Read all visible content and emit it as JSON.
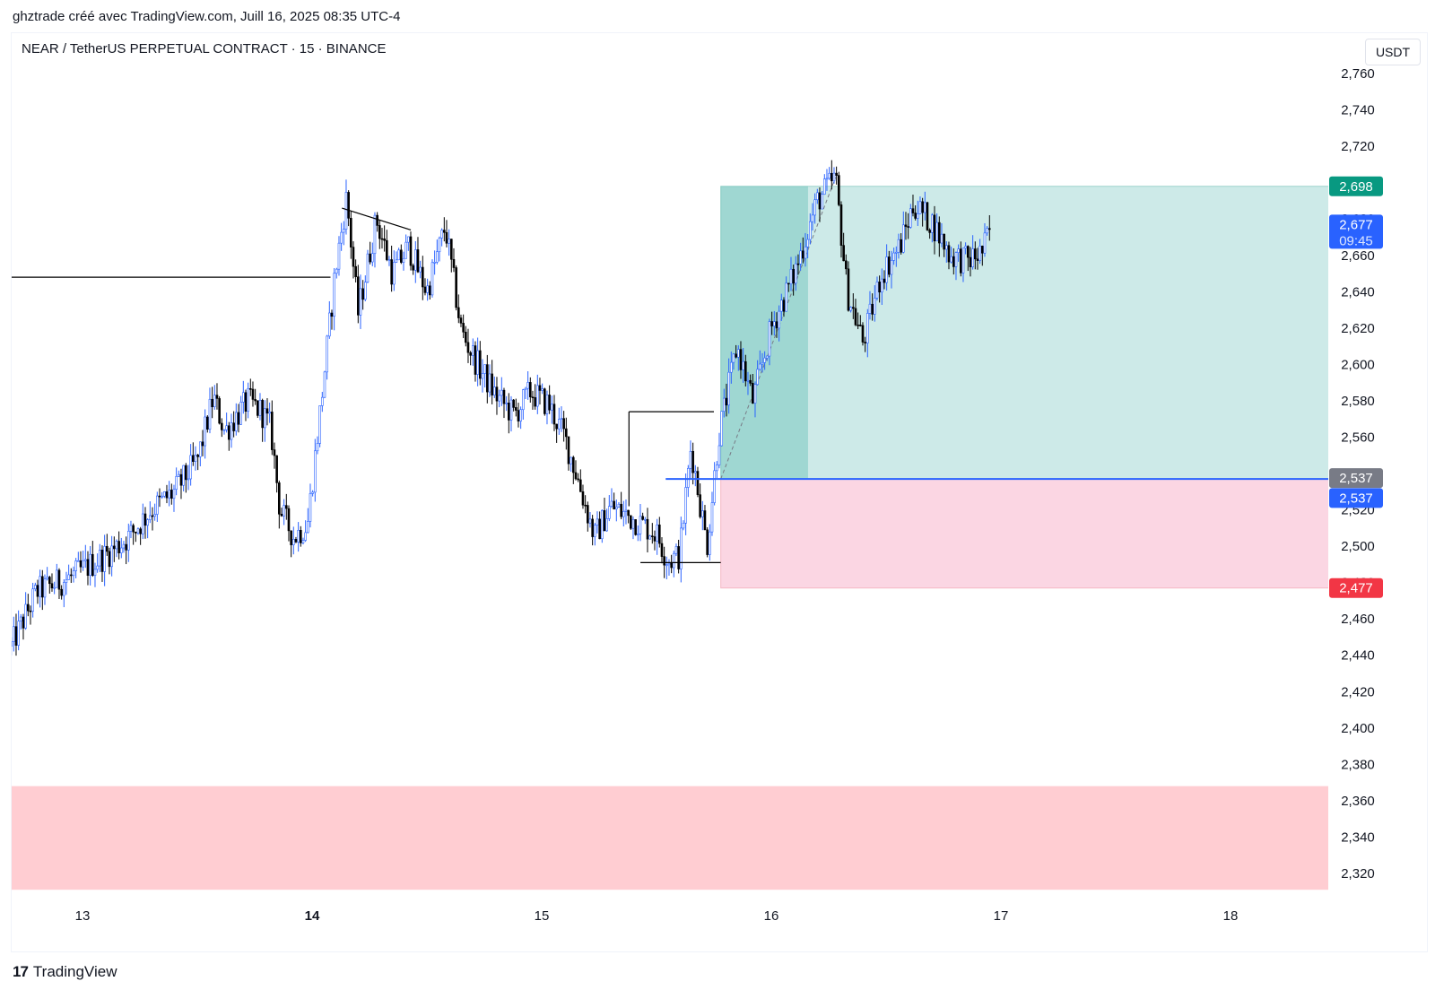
{
  "header": {
    "attribution": "ghztrade créé avec TradingView.com, Juill 16, 2025 08:35 UTC-4"
  },
  "chart_header": {
    "symbol": "NEAR / TetherUS PERPETUAL CONTRACT · 15 · BINANCE",
    "currency": "USDT"
  },
  "footer": {
    "logo_mark": "17",
    "logo_text": "TradingView"
  },
  "colors": {
    "up_wick": "#2962ff",
    "down_candle": "#000000",
    "profit_zone": "#b2dfdb",
    "profit_zone_dark": "#26a69a",
    "loss_zone": "#f8bbd0",
    "demand_zone": "#ffcdd2",
    "entry_line": "#2962ff",
    "tp_label": "#089981",
    "sl_label": "#f23645",
    "price_label": "#2962ff"
  },
  "chart_data": {
    "type": "candlestick",
    "y_ticks": [
      "2,760",
      "2,740",
      "2,720",
      "2,700",
      "2,680",
      "2,660",
      "2,640",
      "2,620",
      "2,600",
      "2,580",
      "2,560",
      "2,540",
      "2,520",
      "2,500",
      "2,480",
      "2,460",
      "2,440",
      "2,420",
      "2,400",
      "2,380",
      "2,360",
      "2,340",
      "2,320"
    ],
    "y_tick_values": [
      2.76,
      2.74,
      2.72,
      2.7,
      2.68,
      2.66,
      2.64,
      2.62,
      2.6,
      2.58,
      2.56,
      2.54,
      2.52,
      2.5,
      2.48,
      2.46,
      2.44,
      2.42,
      2.4,
      2.38,
      2.36,
      2.34,
      2.32
    ],
    "x_ticks": [
      {
        "label": "13",
        "day": 13,
        "bold": false
      },
      {
        "label": "14",
        "day": 14,
        "bold": true
      },
      {
        "label": "15",
        "day": 15,
        "bold": false
      },
      {
        "label": "16",
        "day": 16,
        "bold": false
      },
      {
        "label": "17",
        "day": 17,
        "bold": false
      },
      {
        "label": "18",
        "day": 18,
        "bold": false
      }
    ],
    "path": [
      [
        12.69,
        2.445
      ],
      [
        12.8,
        2.475
      ],
      [
        12.95,
        2.483
      ],
      [
        13.1,
        2.495
      ],
      [
        13.2,
        2.505
      ],
      [
        13.3,
        2.52
      ],
      [
        13.4,
        2.53
      ],
      [
        13.5,
        2.547
      ],
      [
        13.57,
        2.582
      ],
      [
        13.62,
        2.563
      ],
      [
        13.72,
        2.58
      ],
      [
        13.78,
        2.574
      ],
      [
        13.82,
        2.565
      ],
      [
        13.86,
        2.52
      ],
      [
        13.92,
        2.505
      ],
      [
        13.98,
        2.512
      ],
      [
        14.04,
        2.58
      ],
      [
        14.1,
        2.65
      ],
      [
        14.15,
        2.692
      ],
      [
        14.2,
        2.628
      ],
      [
        14.28,
        2.68
      ],
      [
        14.35,
        2.65
      ],
      [
        14.42,
        2.665
      ],
      [
        14.5,
        2.64
      ],
      [
        14.58,
        2.676
      ],
      [
        14.65,
        2.618
      ],
      [
        14.72,
        2.6
      ],
      [
        14.8,
        2.583
      ],
      [
        14.88,
        2.572
      ],
      [
        14.95,
        2.585
      ],
      [
        15.03,
        2.578
      ],
      [
        15.1,
        2.56
      ],
      [
        15.15,
        2.54
      ],
      [
        15.23,
        2.505
      ],
      [
        15.3,
        2.522
      ],
      [
        15.4,
        2.515
      ],
      [
        15.5,
        2.507
      ],
      [
        15.55,
        2.492
      ],
      [
        15.6,
        2.495
      ],
      [
        15.65,
        2.555
      ],
      [
        15.72,
        2.5
      ],
      [
        15.77,
        2.56
      ],
      [
        15.85,
        2.61
      ],
      [
        15.92,
        2.58
      ],
      [
        16.0,
        2.62
      ],
      [
        16.1,
        2.65
      ],
      [
        16.2,
        2.69
      ],
      [
        16.28,
        2.703
      ],
      [
        16.33,
        2.64
      ],
      [
        16.4,
        2.612
      ],
      [
        16.48,
        2.65
      ],
      [
        16.56,
        2.665
      ],
      [
        16.62,
        2.688
      ],
      [
        16.7,
        2.678
      ],
      [
        16.78,
        2.66
      ],
      [
        16.86,
        2.657
      ],
      [
        16.92,
        2.662
      ],
      [
        16.96,
        2.677
      ]
    ],
    "horizontal_levels": [
      {
        "from_day": 12.69,
        "to_day": 14.08,
        "price": 2.648
      },
      {
        "from_day": 15.38,
        "to_day": 15.75,
        "price": 2.574
      },
      {
        "from_day": 15.43,
        "to_day": 15.78,
        "price": 2.491
      }
    ],
    "trendline": {
      "x1": 14.13,
      "y1": 2.686,
      "x2": 14.43,
      "y2": 2.674
    },
    "position": {
      "type": "long",
      "start_day": 15.78,
      "end_day": 18.5,
      "entry": 2.537,
      "target": 2.698,
      "stop": 2.477,
      "filled_until_day": 16.16
    },
    "demand_zone": {
      "from_price": 2.311,
      "to_price": 2.368
    },
    "entry_line": {
      "from_day": 15.54,
      "price": 2.537
    },
    "price_labels": {
      "target": "2,698",
      "current": "2,677",
      "countdown": "09:45",
      "entry_grey": "2,537",
      "entry_blue": "2,537",
      "stop": "2,477"
    }
  }
}
